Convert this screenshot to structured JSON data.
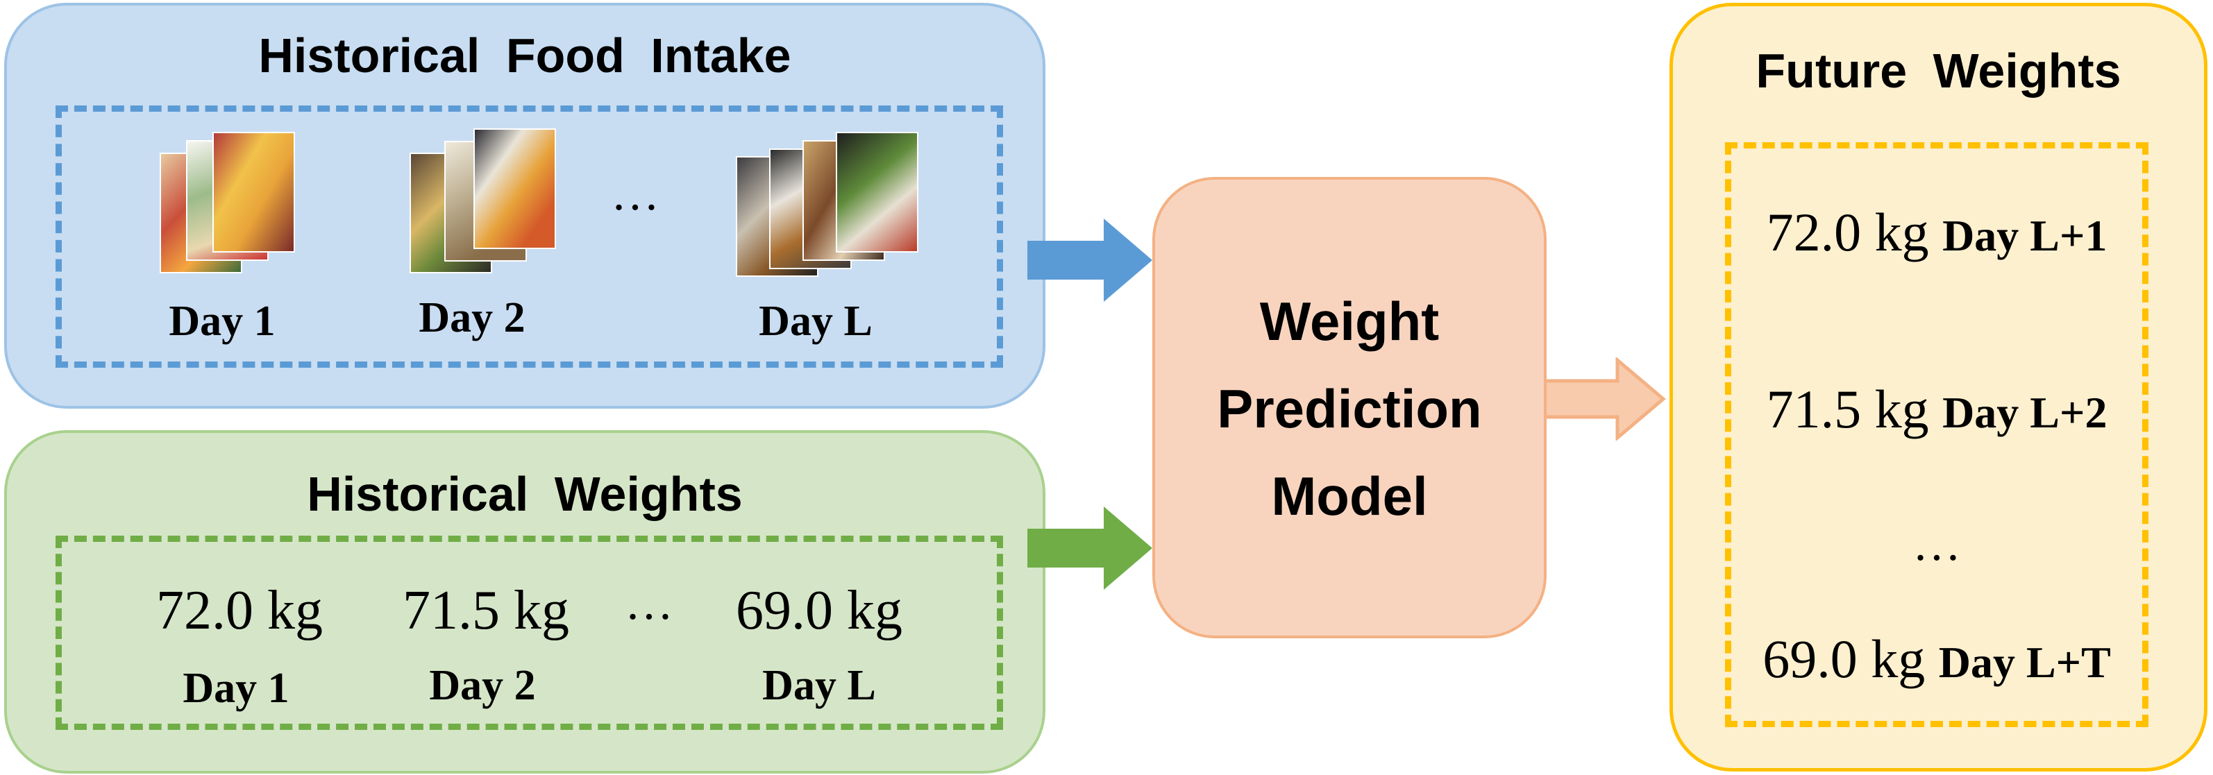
{
  "food_panel": {
    "title": "Historical Food Intake",
    "day_labels": [
      "Day 1",
      "Day 2",
      "Day L"
    ],
    "ellipsis": "…",
    "colors": {
      "fill": "#c8ddf2",
      "border": "#5b9bd5"
    }
  },
  "weights_panel": {
    "title": "Historical Weights",
    "weights": [
      "72.0 kg",
      "71.5 kg",
      "69.0 kg"
    ],
    "day_labels": [
      "Day 1",
      "Day 2",
      "Day L"
    ],
    "ellipsis": "…",
    "colors": {
      "fill": "#d5e6c8",
      "border": "#70ad47"
    }
  },
  "model": {
    "title": "Weight\nPrediction\nModel",
    "colors": {
      "fill": "#f8d4bf",
      "border": "#f4b183"
    }
  },
  "future_panel": {
    "title": "Future Weights",
    "rows": [
      {
        "weight": "72.0 kg",
        "day": "Day L+1"
      },
      {
        "weight": "71.5 kg",
        "day": "Day L+2"
      },
      {
        "weight": "69.0 kg",
        "day": "Day L+T"
      }
    ],
    "ellipsis": "…",
    "colors": {
      "fill": "#fdf0cf",
      "border": "#ffc000"
    }
  },
  "arrows": {
    "food_to_model": {
      "icon": "arrow-right-icon",
      "color": "#5b9bd5"
    },
    "weights_to_model": {
      "icon": "arrow-right-icon",
      "color": "#70ad47"
    },
    "model_to_future": {
      "icon": "arrow-right-icon",
      "color": "#f8cbad"
    }
  }
}
